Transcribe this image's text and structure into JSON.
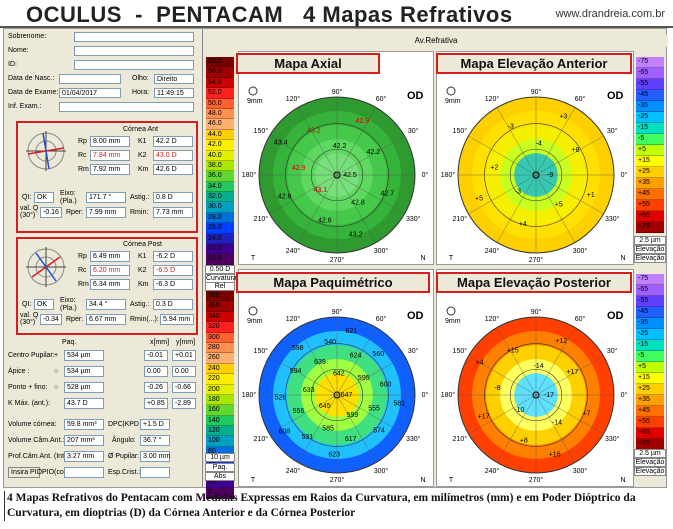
{
  "header": {
    "title": "OCULUS  -  PENTACAM   4 Mapas Refrativos",
    "site": "www.drandreia.com.br"
  },
  "patient": {
    "labels": [
      "Sobrenome:",
      "Nome:",
      "ID:",
      "Data de Nasc.:",
      "Data de Exame:",
      "Inf. Exam.:"
    ],
    "olho_label": "Olho:",
    "olho": "Direito",
    "data_exame": "01/04/2017",
    "hora_label": "Hora:",
    "hora": "11:49:15"
  },
  "cornea_ant": {
    "title": "Córnea Ant",
    "rows": [
      {
        "l1": "Rp",
        "v1": "8.00 mm",
        "l2": "K1",
        "v2": "42.2 D",
        "red": false
      },
      {
        "l1": "Rc",
        "v1": "7.84 mm",
        "l2": "K2",
        "v2": "43.0 D",
        "red": true
      },
      {
        "l1": "Rm",
        "v1": "7.92 mm",
        "l2": "Km",
        "v2": "42.6 D",
        "red": false
      }
    ],
    "ql_label": "QI:",
    "ql": "OK",
    "eixo_label": "Eixo: (Pla.)",
    "eixo": "171.7 °",
    "astig_label": "Astig.:",
    "astig": "0.8 D",
    "valq_label": "val. Q (30°)",
    "valq": "-0.16",
    "rper_label": "Rper:",
    "rper": "7.99 mm",
    "rmin_label": "Rmin:",
    "rmin": "7.73 mm"
  },
  "cornea_post": {
    "title": "Córnea Post",
    "rows": [
      {
        "l1": "Rp",
        "v1": "6.49 mm",
        "l2": "K1",
        "v2": "-6.2 D",
        "red": false
      },
      {
        "l1": "Rc",
        "v1": "6.20 mm",
        "l2": "K2",
        "v2": "-6.5 D",
        "red": true
      },
      {
        "l1": "Rm",
        "v1": "6.34 mm",
        "l2": "Km",
        "v2": "-6.3 D",
        "red": false
      }
    ],
    "ql_label": "QI:",
    "ql": "OK",
    "eixo_label": "Eixo: (Pla.)",
    "eixo": "34.4 °",
    "astig_label": "Astig.:",
    "astig": "0.3 D",
    "valq_label": "val. Q (30°)",
    "valq": "-0.34",
    "rper_label": "Rper:",
    "rper": "6.67 mm",
    "rmin_label": "Rmin(...):",
    "rmin": "5.94 mm"
  },
  "pupil": {
    "head": [
      "Paq.",
      "x[mm]",
      "y[mm]"
    ],
    "rows": [
      {
        "label": "Centro Pupilar:",
        "sym": "+",
        "paq": "534 µm",
        "x": "-0.01",
        "y": "+0.01"
      },
      {
        "label": "Ápice :",
        "sym": "○",
        "paq": "534 µm",
        "x": "0.00",
        "y": "0.00"
      },
      {
        "label": "Ponto + fino:",
        "sym": "○",
        "paq": "528 µm",
        "x": "-0.26",
        "y": "-0.66"
      },
      {
        "label": "K Máx. (ant.):",
        "sym": "",
        "paq": "43.7 D",
        "x": "+0.85",
        "y": "-2.89"
      }
    ],
    "volume_label": "Volume córnea:",
    "volume": "59.8 mm³",
    "dpc_label": "DPC|KPD",
    "dpc": "+1.5 D",
    "cam_label": "Volume Câm.Ant.:",
    "cam": "207 mm³",
    "ang_label": "Ângulo:",
    "ang": "36.7 °",
    "prof_label": "Prof.Câm.Ant. (Int.):",
    "prof": "3.27 mm",
    "pup_label": "Ø Pupilar:",
    "pup": "3.00 mm",
    "pio_label": "Insira PIO",
    "pio_label2": "PIO(cor.):",
    "esp_label": "Esp.Crist.:"
  },
  "av_refrativa": "Av.Refrativa",
  "maps": [
    {
      "title": "Mapa Axial",
      "eye": "OD",
      "top": "90°",
      "bottom": "270°",
      "T": "T",
      "N": "N",
      "ticks": [
        "120°",
        "60°",
        "150°",
        "30°",
        "180°",
        "0°",
        "210°",
        "330°",
        "240°",
        "300°"
      ],
      "values": [
        "42.5",
        "43.1",
        "42.2",
        "42.8",
        "42.9",
        "42.2",
        "42.6",
        "43.2",
        "42.7",
        "42.6",
        "42.9",
        "43.2",
        "43.4"
      ],
      "scale_top": "9mm"
    },
    {
      "title": "Mapa Elevação Anterior",
      "eye": "OD",
      "top": "90°",
      "bottom": "270°",
      "T": "T",
      "N": "N",
      "ticks": [
        "120°",
        "60°",
        "150°",
        "30°",
        "180°",
        "0°",
        "210°",
        "330°",
        "240°",
        "300°"
      ],
      "values": [
        "-9",
        "-3",
        "-4",
        "+5",
        "+2",
        "+8",
        "+4",
        "-3",
        "+1",
        "+5",
        "+3"
      ],
      "scale_top": "9mm"
    },
    {
      "title": "Mapa Paquimétrico",
      "eye": "OD",
      "top": "90°",
      "bottom": "270°",
      "T": "T",
      "N": "N",
      "ticks": [
        "120°",
        "60°",
        "150°",
        "30°",
        "180°",
        "0°",
        "210°",
        "330°",
        "240°",
        "300°"
      ],
      "values": [
        "647",
        "645",
        "642",
        "599",
        "633",
        "595",
        "585",
        "639",
        "555",
        "556",
        "624",
        "617",
        "594",
        "600",
        "531",
        "540",
        "574",
        "526",
        "560",
        "623",
        "598",
        "581",
        "608",
        "621"
      ],
      "scale_top": "9mm"
    },
    {
      "title": "Mapa Elevação Posterior",
      "eye": "OD",
      "top": "90°",
      "bottom": "270°",
      "T": "T",
      "N": "N",
      "ticks": [
        "120°",
        "60°",
        "150°",
        "30°",
        "180°",
        "0°",
        "210°",
        "330°",
        "240°",
        "300°"
      ],
      "values": [
        "-17",
        "-10",
        "-14",
        "-14",
        "-8",
        "+17",
        "+8",
        "+15",
        "+7",
        "+17",
        "+12",
        "+16",
        "+4"
      ],
      "scale_top": "9mm"
    }
  ],
  "scale_left_top": [
    "58.0",
    "56.0",
    "54.0",
    "52.0",
    "50.0",
    "48.0",
    "46.0",
    "44.0",
    "42.0",
    "40.0",
    "38.0",
    "36.0",
    "34.0",
    "32.0",
    "30.0",
    "28.0",
    "26.0",
    "24.0",
    "22.0",
    "20.0"
  ],
  "scale_left_top_step": "0.50 D",
  "scale_left_top_label": "Curvatura",
  "scale_left_top_label2": "Rel",
  "scale_left_bottom": [
    "380",
    "360",
    "340",
    "320",
    "300",
    "280",
    "260",
    "240",
    "220",
    "200",
    "180",
    "160",
    "140",
    "120",
    "100",
    "80",
    "60",
    "40",
    "20",
    "0"
  ],
  "scale_left_bottom_step": "10 µm",
  "scale_left_bottom_label": "Paq.",
  "scale_left_bottom_label2": "Abs",
  "scale_right": [
    "-75",
    "-65",
    "-55",
    "-45",
    "-35",
    "-25",
    "-15",
    "-5",
    "+5",
    "+15",
    "+25",
    "+35",
    "+45",
    "+55",
    "+65",
    "+75"
  ],
  "scale_right_step": "2.5 µm",
  "scale_right_label": "Elevação",
  "scale_right_label2": "Elevação",
  "caption": "4 Mapas Refrativos do Pentacam com Medidas Expressas em Raios da Curvatura, em milímetros (mm) e em Poder Dióptrico da Curvatura, em dioptrias (D) da Córnea Anterior e da Córnea Posterior",
  "colors": {
    "frame_red": "#d61e1e",
    "bg": "#ece9d8"
  }
}
